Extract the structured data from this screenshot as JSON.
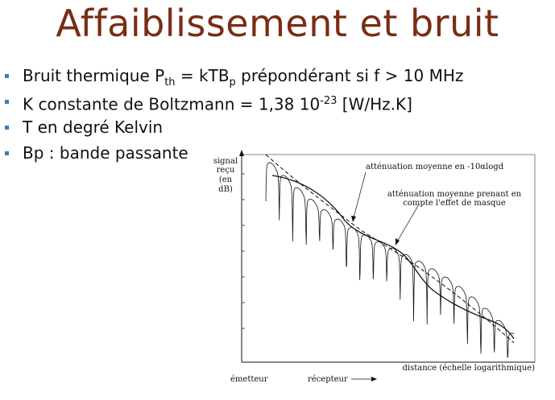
{
  "slide": {
    "title": "Affaiblissement et bruit",
    "bullets": [
      {
        "pre": "Bruit thermique P",
        "sub1": "th",
        "mid": " = kTB",
        "sub2": "p",
        "post": " prépondérant si f > 10 MHz"
      },
      {
        "pre": "K constante de Boltzmann = 1,38 10",
        "sup": "-23",
        "post": " [W/Hz.K]"
      },
      {
        "text": "T en degré Kelvin"
      },
      {
        "text": "Bp : bande passante"
      }
    ]
  },
  "figure": {
    "ylabel_lines": [
      "signal",
      "reçu",
      "(en",
      "dB)"
    ],
    "xlabel": "distance (échelle logarithmique)",
    "annotation_1": "atténuation moyenne en -10αlogd",
    "annotation_2_lines": [
      "atténuation moyenne prenant en",
      "compte l'effet de masque"
    ],
    "emitter_label": "émetteur",
    "receiver_label": "récepteur"
  }
}
